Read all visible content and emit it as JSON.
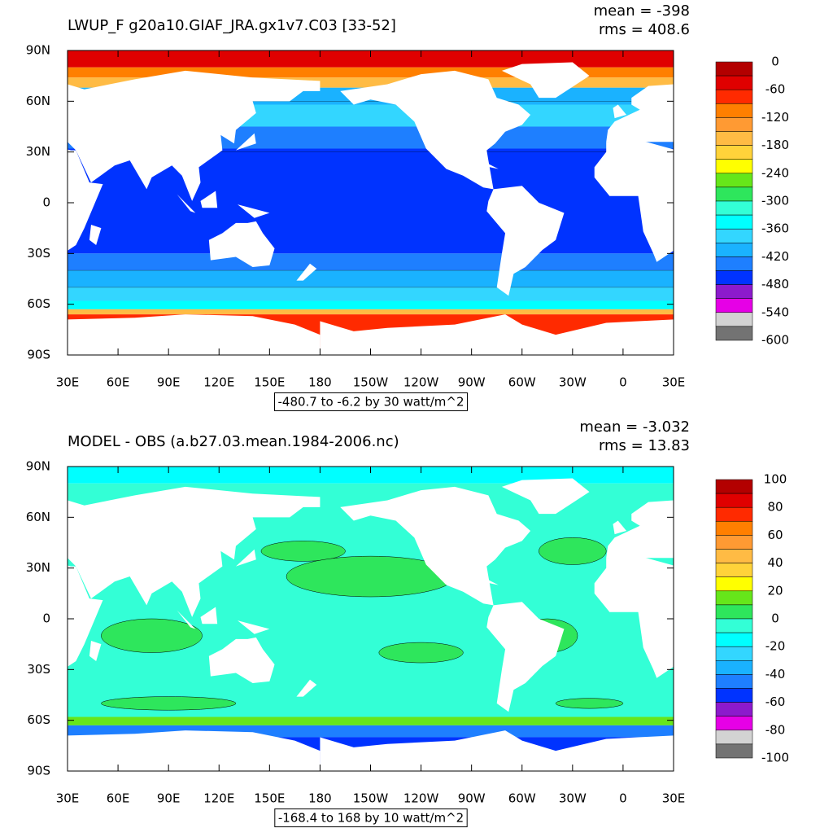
{
  "panels": [
    {
      "title": "LWUP_F g20a10.GIAF_JRA.gx1v7.C03 [33-52]",
      "mean": "mean = -398",
      "rms": "rms = 408.6",
      "footer": "-480.7 to -6.2 by 30 watt/m^2",
      "colorbar": {
        "labels": [
          "0",
          "-60",
          "-120",
          "-180",
          "-240",
          "-300",
          "-360",
          "-420",
          "-480",
          "-540",
          "-600"
        ]
      }
    },
    {
      "title": "MODEL - OBS (a.b27.03.mean.1984-2006.nc)",
      "mean": "mean = -3.032",
      "rms": "rms = 13.83",
      "footer": "-168.4 to 168 by 10 watt/m^2",
      "colorbar": {
        "labels": [
          "100",
          "80",
          "60",
          "40",
          "20",
          "0",
          "-20",
          "-40",
          "-60",
          "-80",
          "-100"
        ]
      }
    }
  ],
  "lat_labels": [
    "90N",
    "60N",
    "30N",
    "0",
    "30S",
    "60S",
    "90S"
  ],
  "lon_labels": [
    "30E",
    "60E",
    "90E",
    "120E",
    "150E",
    "180",
    "150W",
    "120W",
    "90W",
    "60W",
    "30W",
    "0",
    "30E"
  ],
  "colorbar_colors": [
    "#b30000",
    "#e00000",
    "#ff2a00",
    "#ff7f00",
    "#ff9a33",
    "#ffbb44",
    "#ffd33a",
    "#ffff00",
    "#66e61a",
    "#2ee65c",
    "#33ffd6",
    "#00ffff",
    "#33d6ff",
    "#1ab2ff",
    "#1e7fff",
    "#0033ff",
    "#8c1acc",
    "#e600e6",
    "#d3d3d3",
    "#737373"
  ]
}
